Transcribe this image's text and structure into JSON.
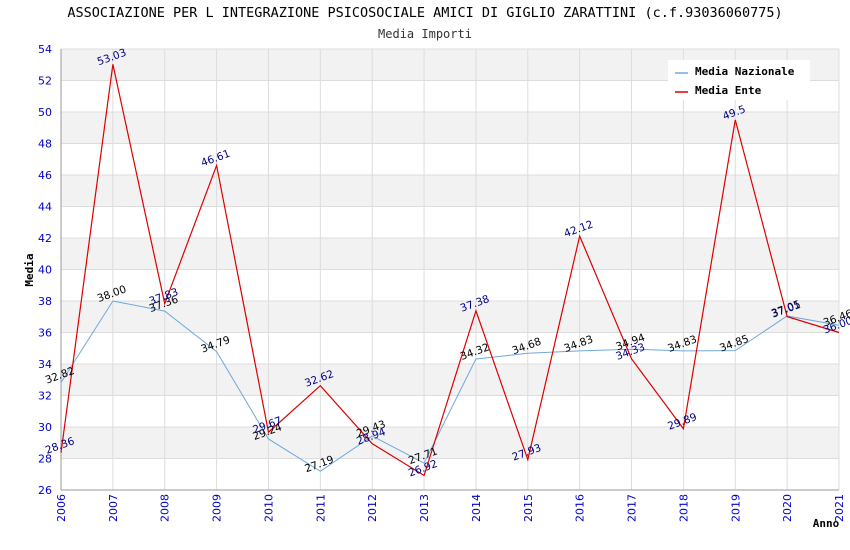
{
  "chart_data": {
    "type": "line",
    "title": "ASSOCIAZIONE PER L INTEGRAZIONE PSICOSOCIALE AMICI DI GIGLIO ZARATTINI (c.f.93036060775)",
    "subtitle": "Media Importi",
    "xlabel": "Anno",
    "ylabel": "Media",
    "ylim": [
      26,
      54
    ],
    "yticks": [
      26,
      28,
      30,
      32,
      34,
      36,
      38,
      40,
      42,
      44,
      46,
      48,
      50,
      52,
      54
    ],
    "x": [
      "2006",
      "2007",
      "2008",
      "2009",
      "2010",
      "2011",
      "2012",
      "2013",
      "2014",
      "2015",
      "2016",
      "2017",
      "2018",
      "2019",
      "2020",
      "2021"
    ],
    "grid": true,
    "legend_position": "top-right",
    "series": [
      {
        "name": "Media Nazionale",
        "color": "#6fa8dc",
        "label_color": "#000000",
        "values": [
          32.82,
          38.0,
          37.36,
          34.79,
          29.24,
          27.19,
          29.43,
          27.71,
          34.32,
          34.68,
          34.83,
          34.94,
          34.83,
          34.85,
          37.05,
          36.46
        ],
        "labels": [
          "32.82",
          "38.00",
          "37.36",
          "34.79",
          "29.24",
          "27.19",
          "29.43",
          "27.71",
          "34.32",
          "34.68",
          "34.83",
          "34.94",
          "34.83",
          "34.85",
          "37.05",
          "36.46"
        ]
      },
      {
        "name": "Media Ente",
        "color": "#dd0000",
        "label_color": "#000080",
        "values": [
          28.36,
          53.03,
          37.83,
          46.61,
          29.67,
          32.62,
          28.94,
          26.92,
          37.38,
          27.93,
          42.12,
          34.33,
          29.89,
          49.5,
          37.01,
          36.0
        ],
        "labels": [
          "28.36",
          "53.03",
          "37.83",
          "46.61",
          "29.67",
          "32.62",
          "28.94",
          "26.92",
          "37.38",
          "27.93",
          "42.12",
          "34.33",
          "29.89",
          "49.5",
          "37.01",
          "36.00"
        ]
      }
    ]
  }
}
